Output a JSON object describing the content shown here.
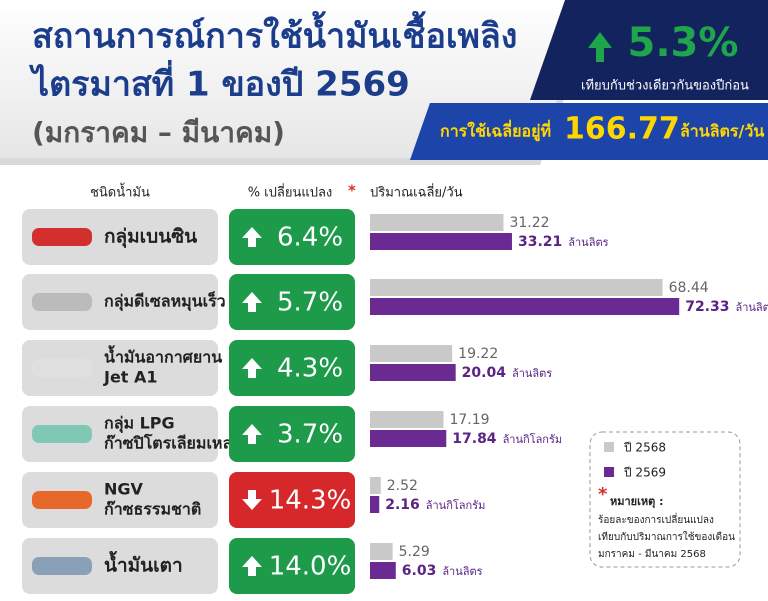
{
  "header": {
    "title_lines": [
      "สถานการณ์การใช้น้ำมันเชื้อเพลิง",
      "ไตรมาสที่ 1 ของปี 2569"
    ],
    "subtitle": "(มกราคม – มีนาคม)"
  },
  "summary": {
    "change": "5.3%",
    "comparison": "เทียบกับช่วงเดียวกันของปีก่อน",
    "average_label": "การใช้เฉลี่ยอยู่ที่",
    "average_value": "166.77",
    "average_unit": "ล้านลิตร/วัน"
  },
  "chart_data": {
    "type": "bar",
    "column_headers": [
      "ชนิดน้ำมัน",
      "% เปลี่ยนแปลง",
      "ปริมาณเฉลี่ย/วัน"
    ],
    "note_marker": "*",
    "categories": [
      [
        "กลุ่มเบนซิน"
      ],
      [
        "กลุ่มดีเซลหมุนเร็ว"
      ],
      [
        "น้ำมันอากาศยาน",
        "Jet A1"
      ],
      [
        "กลุ่ม LPG",
        "ก๊าซปิโตรเลียมเหลว"
      ],
      [
        "NGV",
        "ก๊าซธรรมชาติ"
      ],
      [
        "น้ำมันเตา"
      ]
    ],
    "change": [
      6.4,
      5.7,
      4.3,
      3.7,
      -14.3,
      14.0
    ],
    "change_labels": [
      "6.4%",
      "5.7%",
      "4.3%",
      "3.7%",
      "14.3%",
      "14.0%"
    ],
    "units": [
      "ล้านลิตร",
      "ล้านลิตร",
      "ล้านลิตร",
      "ล้านกิโลกรัม",
      "ล้านกิโลกรัม",
      "ล้านลิตร"
    ],
    "series": [
      {
        "name": "ปี 2568",
        "color": "#c9c9c9",
        "values": [
          31.22,
          68.44,
          19.22,
          17.19,
          2.52,
          5.29
        ]
      },
      {
        "name": "ปี 2569",
        "color": "#6a2a91",
        "values": [
          33.21,
          72.33,
          20.04,
          17.84,
          2.16,
          6.03
        ]
      }
    ],
    "xlim": [
      0,
      80
    ],
    "note": {
      "title": "หมายเหตุ :",
      "lines": [
        "ร้อยละของการเปลี่ยนแปลง",
        "เทียบกับปริมาณการใช้ของเดือน",
        "มกราคม - มีนาคม 2568"
      ]
    }
  }
}
